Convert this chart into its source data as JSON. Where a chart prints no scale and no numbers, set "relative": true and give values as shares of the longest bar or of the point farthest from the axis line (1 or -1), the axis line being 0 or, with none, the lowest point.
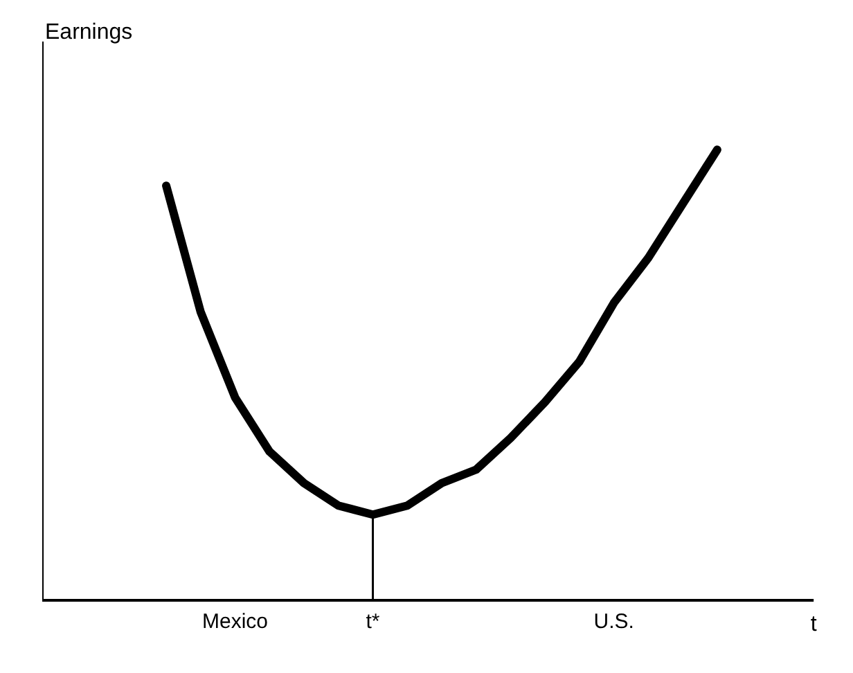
{
  "chart_data": {
    "type": "line",
    "relative": true,
    "xlabel": "t",
    "ylabel": "Earnings",
    "categories": [
      null,
      null,
      "Mexico",
      null,
      null,
      null,
      "t*",
      null,
      null,
      null,
      null,
      null,
      null,
      "U.S.",
      null,
      null,
      null
    ],
    "series": [
      {
        "color": "#000000",
        "values": [
          0.92,
          0.64,
          0.45,
          0.33,
          0.26,
          0.21,
          0.19,
          0.21,
          0.26,
          0.29,
          0.36,
          0.44,
          0.53,
          0.66,
          0.76,
          0.88,
          1.0
        ]
      }
    ],
    "ref_lines": [
      {
        "axis": "x",
        "value": "t*"
      }
    ],
    "grid": false,
    "marker": "none",
    "line_style": "solid"
  }
}
